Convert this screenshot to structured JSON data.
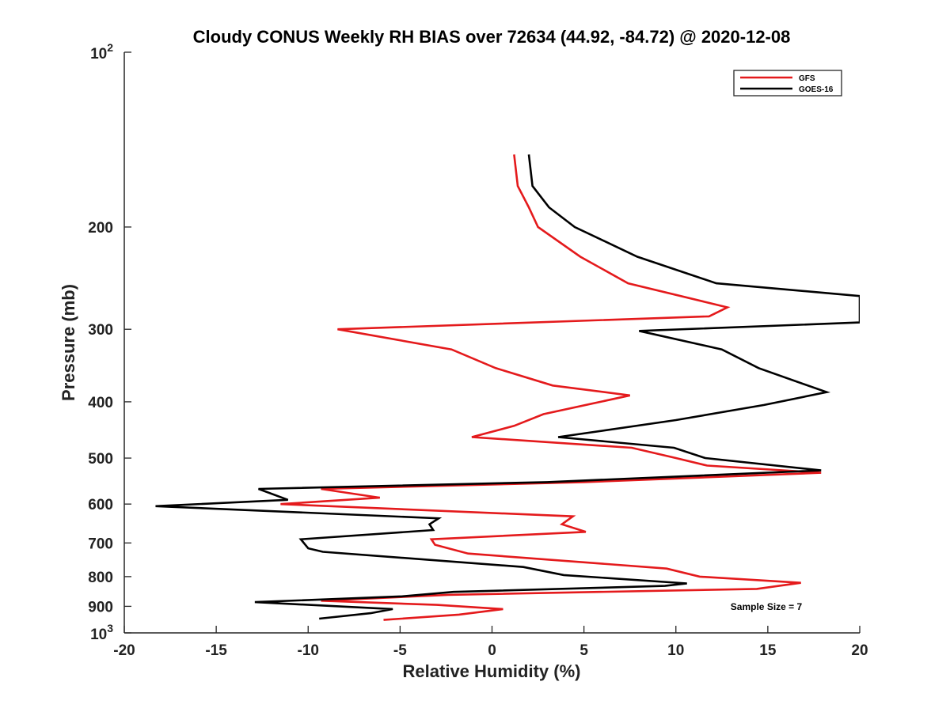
{
  "chart_data": {
    "type": "line",
    "title": "Cloudy CONUS Weekly RH BIAS over 72634 (44.92, -84.72) @ 2020-12-08",
    "xlabel": "Relative Humidity (%)",
    "ylabel": "Pressure (mb)",
    "xlim": [
      -20,
      20
    ],
    "ylim": [
      100,
      1000
    ],
    "y_scale": "log",
    "y_reversed": true,
    "grid": false,
    "legend_position": "top-right",
    "x_ticks": [
      {
        "value": -20,
        "label": "-20"
      },
      {
        "value": -15,
        "label": "-15"
      },
      {
        "value": -10,
        "label": "-10"
      },
      {
        "value": -5,
        "label": "-5"
      },
      {
        "value": 0,
        "label": "0"
      },
      {
        "value": 5,
        "label": "5"
      },
      {
        "value": 10,
        "label": "10"
      },
      {
        "value": 15,
        "label": "15"
      },
      {
        "value": 20,
        "label": "20"
      }
    ],
    "y_ticks": [
      {
        "value": 100,
        "base": "10",
        "exp": "2"
      },
      {
        "value": 200,
        "label": "200"
      },
      {
        "value": 300,
        "label": "300"
      },
      {
        "value": 400,
        "label": "400"
      },
      {
        "value": 500,
        "label": "500"
      },
      {
        "value": 600,
        "label": "600"
      },
      {
        "value": 700,
        "label": "700"
      },
      {
        "value": 800,
        "label": "800"
      },
      {
        "value": 900,
        "label": "900"
      },
      {
        "value": 1000,
        "base": "10",
        "exp": "3"
      }
    ],
    "series": [
      {
        "name": "GFS",
        "color": "#e41a1c",
        "points": [
          [
            1.2,
            150
          ],
          [
            1.4,
            170
          ],
          [
            2.0,
            185
          ],
          [
            2.5,
            200
          ],
          [
            4.8,
            225
          ],
          [
            7.4,
            250
          ],
          [
            12.8,
            275
          ],
          [
            11.8,
            285
          ],
          [
            -8.4,
            300
          ],
          [
            -2.2,
            325
          ],
          [
            0.2,
            350
          ],
          [
            3.3,
            375
          ],
          [
            7.5,
            390
          ],
          [
            2.8,
            420
          ],
          [
            1.2,
            440
          ],
          [
            -1.1,
            460
          ],
          [
            7.6,
            480
          ],
          [
            10.0,
            500
          ],
          [
            11.7,
            515
          ],
          [
            17.9,
            530
          ],
          [
            5.0,
            550
          ],
          [
            -9.3,
            565
          ],
          [
            -6.1,
            585
          ],
          [
            -11.5,
            600
          ],
          [
            4.4,
            630
          ],
          [
            3.8,
            650
          ],
          [
            5.1,
            670
          ],
          [
            -3.3,
            690
          ],
          [
            -3.1,
            705
          ],
          [
            -1.3,
            730
          ],
          [
            9.5,
            775
          ],
          [
            11.3,
            800
          ],
          [
            16.8,
            820
          ],
          [
            14.4,
            840
          ],
          [
            -2.4,
            860
          ],
          [
            -9.3,
            880
          ],
          [
            -3.0,
            895
          ],
          [
            0.6,
            910
          ],
          [
            -1.8,
            930
          ],
          [
            -5.9,
            950
          ]
        ]
      },
      {
        "name": "GOES-16",
        "color": "#000000",
        "points": [
          [
            2.0,
            150
          ],
          [
            2.2,
            170
          ],
          [
            3.1,
            185
          ],
          [
            4.5,
            200
          ],
          [
            7.9,
            225
          ],
          [
            12.2,
            250
          ],
          [
            20.0,
            263
          ],
          [
            20.0,
            292
          ],
          [
            8.0,
            302
          ],
          [
            12.5,
            325
          ],
          [
            14.5,
            350
          ],
          [
            18.2,
            385
          ],
          [
            14.8,
            405
          ],
          [
            10.0,
            430
          ],
          [
            3.6,
            460
          ],
          [
            9.9,
            480
          ],
          [
            11.6,
            500
          ],
          [
            17.9,
            525
          ],
          [
            3.0,
            550
          ],
          [
            -12.7,
            565
          ],
          [
            -11.1,
            590
          ],
          [
            -18.3,
            605
          ],
          [
            -2.9,
            635
          ],
          [
            -3.4,
            650
          ],
          [
            -3.2,
            665
          ],
          [
            -10.4,
            690
          ],
          [
            -10.0,
            715
          ],
          [
            -9.2,
            725
          ],
          [
            1.7,
            770
          ],
          [
            3.9,
            795
          ],
          [
            10.6,
            822
          ],
          [
            9.4,
            830
          ],
          [
            -2.1,
            850
          ],
          [
            -4.9,
            865
          ],
          [
            -12.9,
            885
          ],
          [
            -5.4,
            910
          ],
          [
            -6.6,
            925
          ],
          [
            -9.4,
            945
          ]
        ]
      }
    ],
    "annotations": [
      {
        "text": "Sample Size = 7"
      }
    ]
  }
}
